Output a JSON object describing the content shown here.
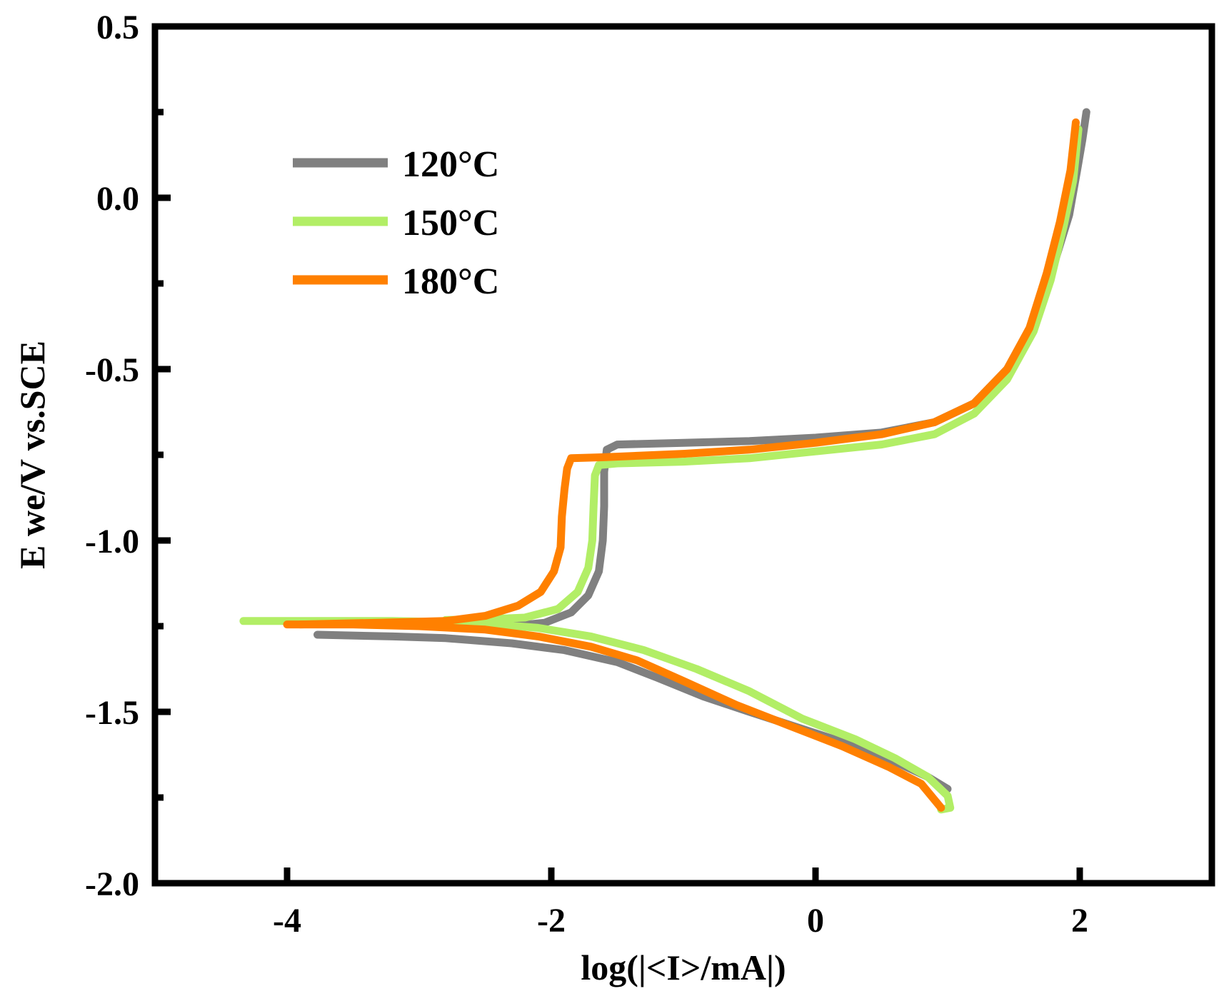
{
  "chart_data": {
    "type": "line",
    "title": "",
    "xlabel": "log(|<I>/mA|)",
    "ylabel": "E we/V vs.SCE",
    "xlim": [
      -5,
      3
    ],
    "ylim": [
      -2.0,
      0.5
    ],
    "xticks": [
      -4,
      -2,
      0,
      2
    ],
    "xtick_labels": [
      "-4",
      "-2",
      "0",
      "2"
    ],
    "yticks": [
      -2.0,
      -1.5,
      -1.0,
      -0.5,
      0.0,
      0.5
    ],
    "ytick_labels": [
      "-2.0",
      "-1.5",
      "-1.0",
      "-0.5",
      "0.0",
      "0.5"
    ],
    "grid": false,
    "legend_position": "top-left",
    "series": [
      {
        "name": "120°C",
        "color": "#808080",
        "cathodic": [
          [
            -3.77,
            -1.275
          ],
          [
            -3.2,
            -1.28
          ],
          [
            -2.8,
            -1.285
          ],
          [
            -2.3,
            -1.3
          ],
          [
            -1.9,
            -1.32
          ],
          [
            -1.5,
            -1.355
          ],
          [
            -1.2,
            -1.4
          ],
          [
            -0.85,
            -1.455
          ],
          [
            -0.5,
            -1.5
          ],
          [
            -0.1,
            -1.55
          ],
          [
            0.3,
            -1.6
          ],
          [
            0.6,
            -1.645
          ],
          [
            0.85,
            -1.69
          ],
          [
            1.0,
            -1.725
          ]
        ],
        "anodic": [
          [
            -2.75,
            -1.25
          ],
          [
            -2.3,
            -1.25
          ],
          [
            -2.05,
            -1.24
          ],
          [
            -1.85,
            -1.21
          ],
          [
            -1.72,
            -1.16
          ],
          [
            -1.64,
            -1.09
          ],
          [
            -1.61,
            -1.0
          ],
          [
            -1.6,
            -0.9
          ],
          [
            -1.6,
            -0.8
          ],
          [
            -1.58,
            -0.735
          ],
          [
            -1.5,
            -0.72
          ],
          [
            -1.0,
            -0.715
          ],
          [
            -0.5,
            -0.71
          ],
          [
            0.0,
            -0.7
          ],
          [
            0.5,
            -0.685
          ],
          [
            0.9,
            -0.655
          ],
          [
            1.2,
            -0.6
          ],
          [
            1.45,
            -0.5
          ],
          [
            1.65,
            -0.36
          ],
          [
            1.8,
            -0.2
          ],
          [
            1.92,
            -0.05
          ],
          [
            1.98,
            0.08
          ],
          [
            2.02,
            0.17
          ],
          [
            2.05,
            0.25
          ]
        ]
      },
      {
        "name": "150°C",
        "color": "#b2ee66",
        "cathodic": [
          [
            -4.33,
            -1.235
          ],
          [
            -3.8,
            -1.235
          ],
          [
            -3.2,
            -1.235
          ],
          [
            -2.6,
            -1.24
          ],
          [
            -2.1,
            -1.255
          ],
          [
            -1.7,
            -1.28
          ],
          [
            -1.3,
            -1.32
          ],
          [
            -0.9,
            -1.375
          ],
          [
            -0.5,
            -1.44
          ],
          [
            -0.1,
            -1.52
          ],
          [
            0.3,
            -1.58
          ],
          [
            0.6,
            -1.635
          ],
          [
            0.85,
            -1.69
          ],
          [
            1.0,
            -1.745
          ],
          [
            1.02,
            -1.78
          ],
          [
            0.95,
            -1.785
          ]
        ],
        "anodic": [
          [
            -2.8,
            -1.232
          ],
          [
            -2.5,
            -1.23
          ],
          [
            -2.2,
            -1.225
          ],
          [
            -1.95,
            -1.2
          ],
          [
            -1.8,
            -1.15
          ],
          [
            -1.72,
            -1.08
          ],
          [
            -1.69,
            -1.0
          ],
          [
            -1.68,
            -0.9
          ],
          [
            -1.67,
            -0.81
          ],
          [
            -1.64,
            -0.78
          ],
          [
            -1.5,
            -0.775
          ],
          [
            -1.0,
            -0.77
          ],
          [
            -0.5,
            -0.76
          ],
          [
            0.0,
            -0.74
          ],
          [
            0.5,
            -0.72
          ],
          [
            0.9,
            -0.69
          ],
          [
            1.2,
            -0.63
          ],
          [
            1.45,
            -0.53
          ],
          [
            1.65,
            -0.39
          ],
          [
            1.78,
            -0.24
          ],
          [
            1.88,
            -0.08
          ],
          [
            1.95,
            0.05
          ],
          [
            1.99,
            0.2
          ]
        ]
      },
      {
        "name": "180°C",
        "color": "#ff8000",
        "cathodic": [
          [
            -4.0,
            -1.245
          ],
          [
            -3.5,
            -1.245
          ],
          [
            -3.0,
            -1.25
          ],
          [
            -2.5,
            -1.26
          ],
          [
            -2.1,
            -1.28
          ],
          [
            -1.7,
            -1.31
          ],
          [
            -1.35,
            -1.35
          ],
          [
            -1.0,
            -1.41
          ],
          [
            -0.6,
            -1.48
          ],
          [
            -0.2,
            -1.54
          ],
          [
            0.2,
            -1.6
          ],
          [
            0.55,
            -1.66
          ],
          [
            0.8,
            -1.71
          ],
          [
            0.95,
            -1.78
          ]
        ],
        "anodic": [
          [
            -3.9,
            -1.245
          ],
          [
            -3.3,
            -1.24
          ],
          [
            -2.8,
            -1.235
          ],
          [
            -2.5,
            -1.22
          ],
          [
            -2.25,
            -1.19
          ],
          [
            -2.08,
            -1.15
          ],
          [
            -1.98,
            -1.09
          ],
          [
            -1.93,
            -1.02
          ],
          [
            -1.92,
            -0.93
          ],
          [
            -1.9,
            -0.85
          ],
          [
            -1.88,
            -0.79
          ],
          [
            -1.85,
            -0.76
          ],
          [
            -1.6,
            -0.757
          ],
          [
            -1.0,
            -0.747
          ],
          [
            -0.5,
            -0.735
          ],
          [
            0.0,
            -0.715
          ],
          [
            0.5,
            -0.69
          ],
          [
            0.9,
            -0.655
          ],
          [
            1.2,
            -0.6
          ],
          [
            1.45,
            -0.5
          ],
          [
            1.62,
            -0.38
          ],
          [
            1.75,
            -0.22
          ],
          [
            1.85,
            -0.07
          ],
          [
            1.93,
            0.08
          ],
          [
            1.97,
            0.22
          ]
        ]
      }
    ]
  }
}
